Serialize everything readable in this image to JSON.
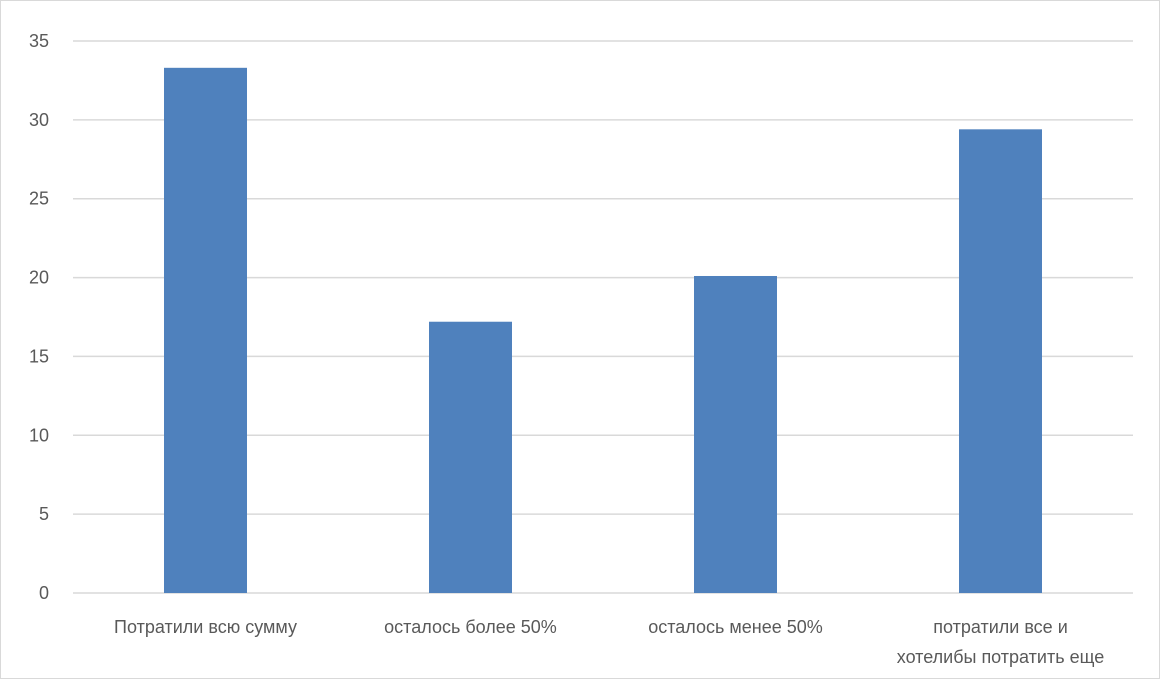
{
  "chart_data": {
    "type": "bar",
    "categories": [
      [
        "Потратили всю сумму"
      ],
      [
        "осталось более 50%"
      ],
      [
        "осталось менее 50%"
      ],
      [
        "потратили все и",
        "хотелибы потратить еще"
      ]
    ],
    "values": [
      33.3,
      17.2,
      20.1,
      29.4
    ],
    "ylim": [
      0,
      35
    ],
    "yticks": [
      "0",
      "5",
      "10",
      "15",
      "20",
      "25",
      "30",
      "35"
    ],
    "grid": true,
    "bar_color": "#4f81bd",
    "title": "",
    "xlabel": "",
    "ylabel": ""
  }
}
